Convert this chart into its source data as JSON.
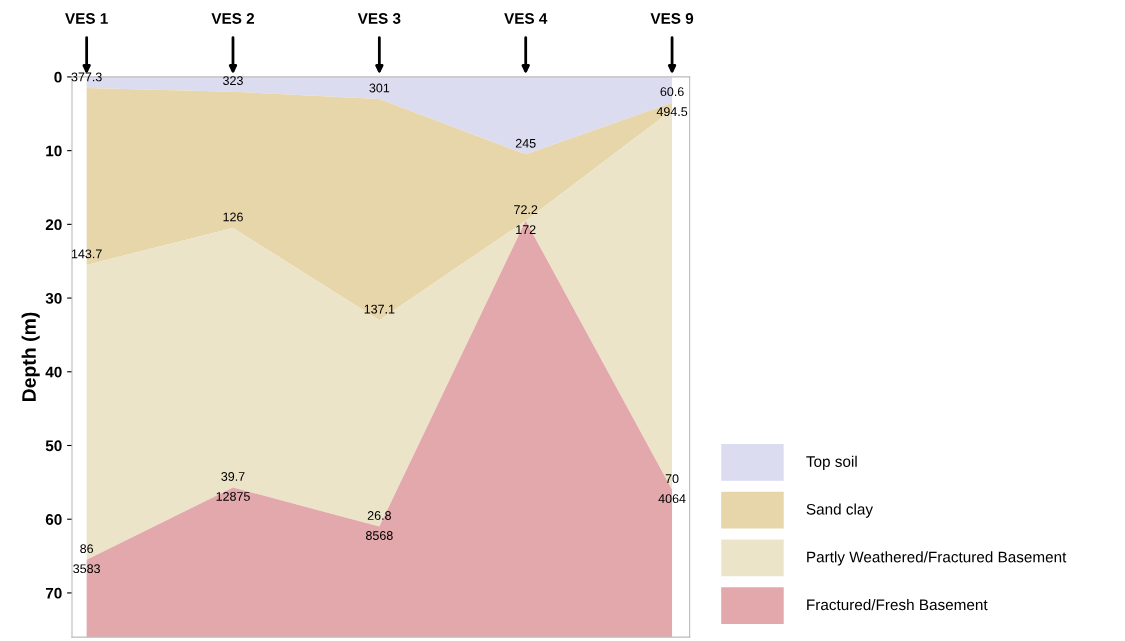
{
  "chart_data": {
    "type": "area",
    "stacked": true,
    "ylabel": "Depth (m)",
    "categories": [
      "VES 1",
      "VES 2",
      "VES 3",
      "VES 4",
      "VES 9"
    ],
    "series": [
      {
        "name": "Top soil",
        "color": "#dcdcf0",
        "values": [
          1.5,
          2,
          3,
          10.5,
          3.5
        ]
      },
      {
        "name": "Sand clay",
        "color": "#e8d6ab",
        "values": [
          24,
          18.5,
          30,
          9,
          1
        ]
      },
      {
        "name": "Partly Weathered/Fractured Basement",
        "color": "#ece4c9",
        "values": [
          40,
          35.2,
          28,
          0,
          51.5
        ]
      },
      {
        "name": "Fractured/Fresh Basement",
        "color": "#e3a8ab",
        "values": [
          10.5,
          20.3,
          15,
          56.5,
          20
        ]
      }
    ],
    "ylim": [
      76,
      0
    ],
    "yticks": [
      0,
      10,
      20,
      30,
      40,
      50,
      60,
      70
    ],
    "grid": false,
    "legend": "bottom right",
    "annotations": [
      {
        "text": "377.3",
        "x": "VES 1",
        "y": 1.5
      },
      {
        "text": "323",
        "x": "VES 2",
        "y": 2
      },
      {
        "text": "301",
        "x": "VES 3",
        "y": 3
      },
      {
        "text": "245",
        "x": "VES 4",
        "y": 10.5
      },
      {
        "text": "60.6",
        "x": "VES 9",
        "y": 3.5
      },
      {
        "text": "494.5",
        "x": "VES 9",
        "y": 3.5
      },
      {
        "text": "143.7",
        "x": "VES 1",
        "y": 25.5
      },
      {
        "text": "126",
        "x": "VES 2",
        "y": 20.5
      },
      {
        "text": "137.1",
        "x": "VES 3",
        "y": 33
      },
      {
        "text": "72.2",
        "x": "VES 4",
        "y": 19.5
      },
      {
        "text": "172",
        "x": "VES 4",
        "y": 19.5
      },
      {
        "text": "86",
        "x": "VES 1",
        "y": 65.5
      },
      {
        "text": "3583",
        "x": "VES 1",
        "y": 65.5
      },
      {
        "text": "39.7",
        "x": "VES 2",
        "y": 55.7
      },
      {
        "text": "12875",
        "x": "VES 2",
        "y": 55.7
      },
      {
        "text": "26.8",
        "x": "VES 3",
        "y": 61
      },
      {
        "text": "8568",
        "x": "VES 3",
        "y": 61
      },
      {
        "text": "70",
        "x": "VES 9",
        "y": 56
      },
      {
        "text": "4064",
        "x": "VES 9",
        "y": 56
      }
    ]
  }
}
